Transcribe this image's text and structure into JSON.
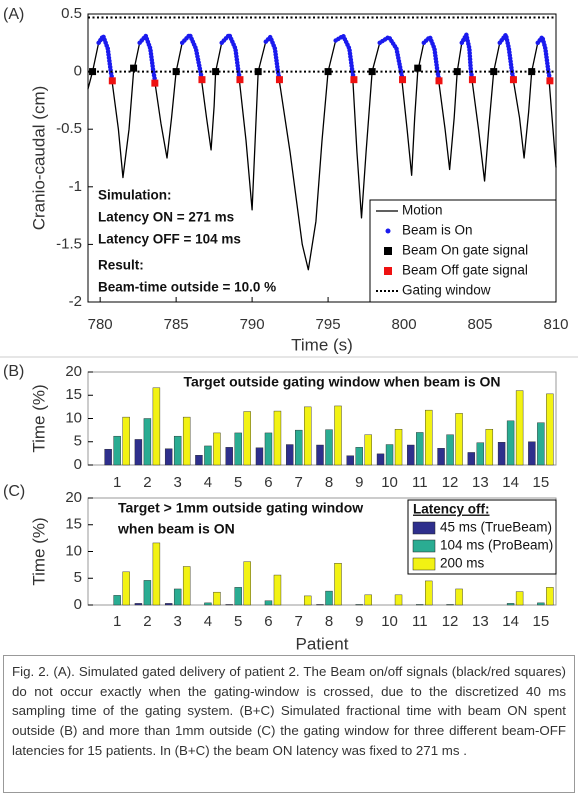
{
  "chart_data": [
    {
      "type": "line",
      "panel": "(A)",
      "xlabel": "Time (s)",
      "ylabel": "Cranio-caudal (cm)",
      "xlim": [
        779.2,
        810
      ],
      "xticks": [
        780,
        785,
        790,
        795,
        800,
        805,
        810
      ],
      "ylim": [
        -2,
        0.5
      ],
      "yticks": [
        0.5,
        0,
        -0.5,
        -1,
        -1.5,
        -2
      ],
      "annotations": [
        "Simulation:",
        "Latency ON = 271 ms",
        "Latency OFF = 104 ms",
        "Result:",
        "Beam-time outside = 10.0 %"
      ],
      "legend": "lower right",
      "series": [
        {
          "name": "Motion",
          "color": "#000000",
          "style": "line",
          "x": [
            779.2,
            779.5,
            779.9,
            780.2,
            780.5,
            780.7,
            781.2,
            781.5,
            781.9,
            782.2,
            782.6,
            783.0,
            783.3,
            783.5,
            784.0,
            784.4,
            784.7,
            785.0,
            785.4,
            785.9,
            786.3,
            786.6,
            787.0,
            787.3,
            787.5,
            787.6,
            788.0,
            788.5,
            788.9,
            789.1,
            789.6,
            790.0,
            790.2,
            790.4,
            790.9,
            791.2,
            791.5,
            791.7,
            792.5,
            793.3,
            793.7,
            794.2,
            794.6,
            795.0,
            795.5,
            796.0,
            796.4,
            796.6,
            796.9,
            797.2,
            797.5,
            797.9,
            798.4,
            799.0,
            799.5,
            799.8,
            800.2,
            800.5,
            800.7,
            800.9,
            801.3,
            801.7,
            802.0,
            802.2,
            802.7,
            803.0,
            803.3,
            803.5,
            803.8,
            804.1,
            804.3,
            804.4,
            804.9,
            805.3,
            805.6,
            805.9,
            806.3,
            806.7,
            806.9,
            807.1,
            807.6,
            807.9,
            808.2,
            808.4,
            808.8,
            809.1,
            809.3,
            809.5,
            810.0
          ],
          "values": [
            -0.15,
            0,
            0.25,
            0.31,
            0.2,
            0,
            -0.5,
            -0.92,
            -0.5,
            0,
            0.25,
            0.31,
            0.2,
            0,
            -0.45,
            -0.75,
            -0.4,
            0,
            0.25,
            0.32,
            0.2,
            0,
            -0.4,
            -0.68,
            -0.3,
            0,
            0.25,
            0.32,
            0.2,
            0,
            -0.6,
            -1.2,
            -0.6,
            0,
            0.26,
            0.3,
            0.2,
            0,
            -0.7,
            -1.5,
            -1.72,
            -1.3,
            -0.6,
            0,
            0.27,
            0.31,
            0.2,
            0,
            -0.7,
            -1.27,
            -0.7,
            0,
            0.25,
            0.3,
            0.2,
            0,
            -0.5,
            -0.9,
            -0.4,
            0,
            0.25,
            0.3,
            0.2,
            0,
            -0.5,
            -0.85,
            -0.4,
            0,
            0.25,
            0.32,
            0.2,
            0,
            -0.5,
            -0.95,
            -0.45,
            0,
            0.25,
            0.32,
            0.2,
            0,
            -0.4,
            -0.75,
            -0.35,
            0,
            0.25,
            0.3,
            0.2,
            0,
            -0.83
          ]
        },
        {
          "name": "Beam is On",
          "color": "#1a1aee",
          "style": "dots",
          "x": [
            779.9,
            780.2,
            780.5,
            780.7,
            780.8,
            null,
            782.6,
            783.0,
            783.3,
            783.5,
            783.6,
            null,
            785.4,
            785.9,
            786.3,
            786.6,
            786.7,
            null,
            788.0,
            788.5,
            788.9,
            789.1,
            789.2,
            null,
            790.9,
            791.2,
            791.5,
            791.7,
            791.8,
            null,
            795.5,
            796.0,
            796.4,
            796.6,
            796.7,
            null,
            798.4,
            799.0,
            799.5,
            799.8,
            799.9,
            null,
            801.3,
            801.7,
            802.0,
            802.2,
            802.3,
            null,
            803.8,
            804.1,
            804.3,
            804.4,
            804.5,
            null,
            806.3,
            806.7,
            806.9,
            807.1,
            807.2,
            null,
            808.8,
            809.1,
            809.3,
            809.5,
            809.6
          ],
          "values": [
            0.25,
            0.31,
            0.2,
            0,
            -0.07,
            null,
            0.25,
            0.31,
            0.2,
            0,
            -0.07,
            null,
            0.25,
            0.32,
            0.2,
            0,
            -0.07,
            null,
            0.25,
            0.32,
            0.2,
            0,
            -0.07,
            null,
            0.26,
            0.3,
            0.2,
            0,
            -0.07,
            null,
            0.27,
            0.31,
            0.2,
            0,
            -0.07,
            null,
            0.25,
            0.3,
            0.2,
            0,
            -0.07,
            null,
            0.25,
            0.3,
            0.2,
            0,
            -0.07,
            null,
            0.25,
            0.32,
            0.2,
            0,
            -0.07,
            null,
            0.25,
            0.32,
            0.2,
            0,
            -0.07,
            null,
            0.25,
            0.3,
            0.2,
            0,
            -0.07
          ]
        },
        {
          "name": "Beam On gate signal",
          "color": "#000000",
          "style": "squares",
          "x": [
            779.5,
            782.2,
            785.0,
            787.6,
            790.4,
            795.0,
            797.9,
            800.9,
            803.5,
            805.9,
            808.4
          ],
          "values": [
            0,
            0.03,
            0,
            0,
            0,
            0,
            0,
            0.03,
            0,
            0,
            0
          ]
        },
        {
          "name": "Beam Off gate signal",
          "color": "#ee1111",
          "style": "squares",
          "x": [
            780.8,
            783.6,
            786.7,
            789.2,
            791.8,
            796.7,
            799.9,
            802.3,
            804.5,
            807.2,
            809.6
          ],
          "values": [
            -0.08,
            -0.1,
            -0.07,
            -0.07,
            -0.07,
            -0.07,
            -0.07,
            -0.08,
            -0.07,
            -0.07,
            -0.08
          ]
        },
        {
          "name": "Gating window",
          "color": "#000000",
          "style": "dotted",
          "values": [
            0.47,
            0
          ]
        }
      ]
    },
    {
      "type": "bar",
      "panel": "(B)",
      "ylabel": "Time (%)",
      "title": [
        "Target outside gating window when beam is ON"
      ],
      "categories": [
        "1",
        "2",
        "3",
        "4",
        "5",
        "6",
        "7",
        "8",
        "9",
        "10",
        "11",
        "12",
        "13",
        "14",
        "15"
      ],
      "ylim": [
        0,
        20
      ],
      "yticks": [
        0,
        5,
        10,
        15,
        20
      ],
      "series": [
        {
          "color": "#2e2f8c",
          "values": [
            3.4,
            5.5,
            3.5,
            2.1,
            3.8,
            3.7,
            4.4,
            4.3,
            2.0,
            2.4,
            4.3,
            3.6,
            2.7,
            4.9,
            5.0
          ]
        },
        {
          "color": "#2aac92",
          "values": [
            6.2,
            10,
            6.2,
            4.1,
            6.9,
            6.9,
            7.5,
            7.6,
            3.8,
            4.4,
            7.0,
            6.5,
            4.8,
            9.5,
            9.1
          ]
        },
        {
          "color": "#f2f213",
          "values": [
            10.3,
            16.6,
            10.3,
            6.9,
            11.5,
            11.6,
            12.5,
            12.7,
            6.5,
            7.7,
            11.8,
            11.1,
            7.7,
            16.0,
            15.3
          ]
        }
      ]
    },
    {
      "type": "bar",
      "panel": "(C)",
      "ylabel": "Time (%)",
      "xlabel": "Patient",
      "title": [
        "Target  > 1mm outside gating window",
        "when beam is ON"
      ],
      "categories": [
        "1",
        "2",
        "3",
        "4",
        "5",
        "6",
        "7",
        "8",
        "9",
        "10",
        "11",
        "12",
        "13",
        "14",
        "15"
      ],
      "ylim": [
        0,
        20
      ],
      "yticks": [
        0,
        5,
        10,
        15,
        20
      ],
      "legend_title": "Latency off:",
      "legend": "upper right",
      "series": [
        {
          "name": "45 ms (TrueBeam)",
          "color": "#2e2f8c",
          "values": [
            0,
            0.3,
            0.3,
            0,
            0.1,
            0,
            0,
            0.1,
            0,
            0,
            0,
            0,
            0,
            0,
            0
          ]
        },
        {
          "name": "104 ms (ProBeam)",
          "color": "#2aac92",
          "values": [
            1.8,
            4.6,
            3.0,
            0.4,
            3.3,
            0.8,
            0,
            2.6,
            0.1,
            0,
            0.1,
            0.1,
            0,
            0.3,
            0.4
          ]
        },
        {
          "name": "200 ms",
          "color": "#f2f213",
          "values": [
            6.2,
            11.6,
            7.2,
            2.4,
            8.1,
            5.6,
            1.7,
            7.8,
            1.9,
            1.9,
            4.5,
            3.0,
            0,
            2.5,
            3.3
          ]
        }
      ]
    }
  ],
  "caption": "Fig. 2. (A). Simulated gated delivery of patient 2. The Beam on/off signals (black/red squares) do not occur exactly when the gating-window is crossed, due to the discretized 40 ms sampling time of the gating system. (B+C) Simulated fractional time with beam ON spent outside (B) and more than 1mm outside (C) the gating window for three different beam-OFF latencies for 15 patients.  In (B+C) the beam ON latency was fixed to 271 ms ."
}
